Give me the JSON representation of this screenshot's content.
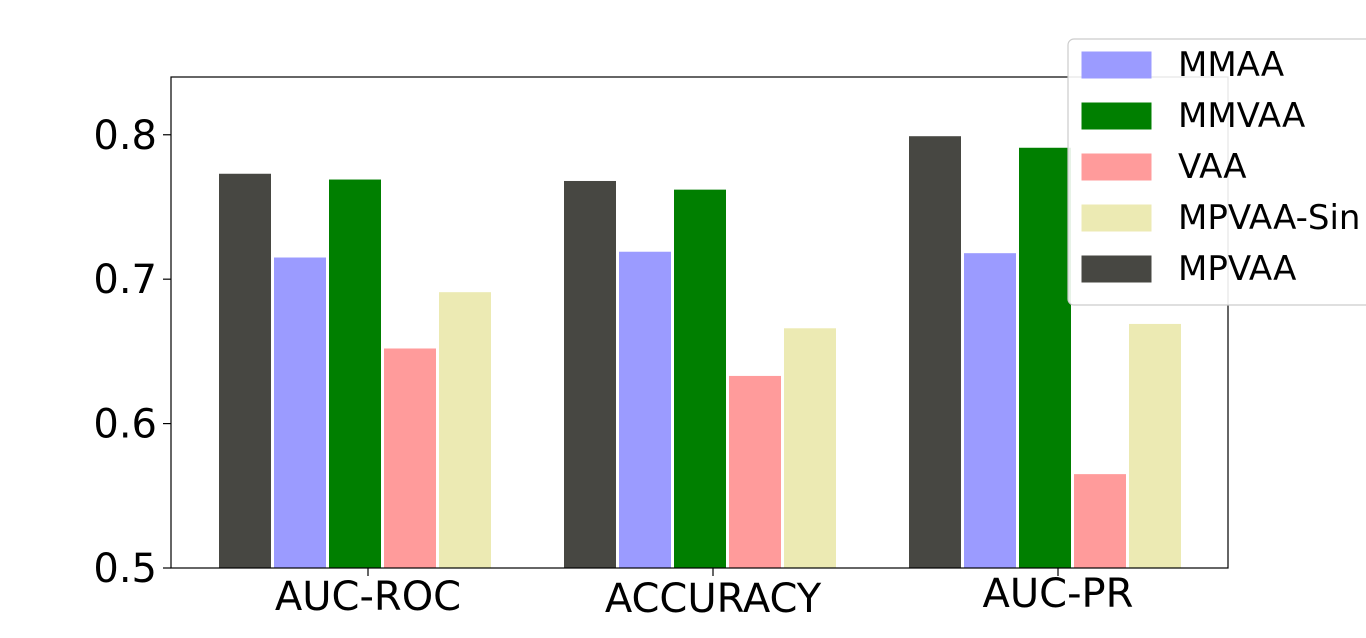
{
  "chart_data": {
    "type": "bar",
    "title": "",
    "xlabel": "",
    "ylabel": "",
    "categories": [
      "AUC-ROC",
      "ACCURACY",
      "AUC-PR"
    ],
    "ylim": [
      0.5,
      0.84
    ],
    "yticks": [
      0.5,
      0.6,
      0.7,
      0.8
    ],
    "ytick_labels": [
      "0.5",
      "0.6",
      "0.7",
      "0.8"
    ],
    "grid": false,
    "legend_position": "top-right",
    "series": [
      {
        "name": "MPVAA",
        "color": "#474742",
        "values": [
          0.773,
          0.768,
          0.799
        ]
      },
      {
        "name": "MMAA",
        "color": "#9b9bff",
        "values": [
          0.715,
          0.719,
          0.718
        ]
      },
      {
        "name": "MMVAA",
        "color": "#007f00",
        "values": [
          0.769,
          0.762,
          0.791
        ]
      },
      {
        "name": "VAA",
        "color": "#ff9b9b",
        "values": [
          0.652,
          0.633,
          0.565
        ]
      },
      {
        "name": "MPVAA-Sin",
        "color": "#eceab3",
        "values": [
          0.691,
          0.666,
          0.669
        ]
      }
    ],
    "legend_order": [
      "MMAA",
      "MMVAA",
      "VAA",
      "MPVAA-Sin",
      "MPVAA"
    ]
  }
}
